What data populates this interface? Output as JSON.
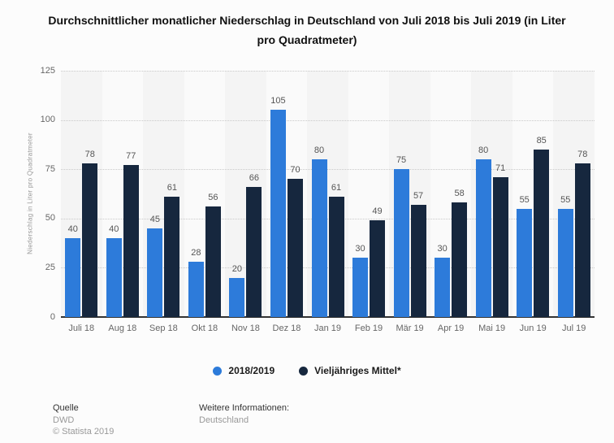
{
  "title": "Durchschnittlicher monatlicher Niederschlag in Deutschland von Juli 2018 bis Juli 2019 (in Liter pro Quadratmeter)",
  "chart_data": {
    "type": "bar",
    "categories": [
      "Juli 18",
      "Aug 18",
      "Sep 18",
      "Okt 18",
      "Nov 18",
      "Dez 18",
      "Jan 19",
      "Feb 19",
      "Mär 19",
      "Apr 19",
      "Mai 19",
      "Jun 19",
      "Jul 19"
    ],
    "series": [
      {
        "name": "2018/2019",
        "color": "#2d7bda",
        "values": [
          40,
          40,
          45,
          28,
          20,
          105,
          80,
          30,
          75,
          30,
          80,
          55,
          55
        ]
      },
      {
        "name": "Vieljähriges Mittel*",
        "color": "#16273e",
        "values": [
          78,
          77,
          61,
          56,
          66,
          70,
          61,
          49,
          57,
          58,
          71,
          85,
          78
        ]
      }
    ],
    "xlabel": "",
    "ylabel": "Niederschlag in Liter pro Quadratmeter",
    "ylim": [
      0,
      125
    ],
    "yticks": [
      0,
      25,
      50,
      75,
      100,
      125
    ],
    "grid": "horizontal dotted",
    "legend_position": "bottom",
    "plot_background": "alternating column bands"
  },
  "legend": [
    {
      "label": "2018/2019",
      "color": "#2d7bda"
    },
    {
      "label": "Vieljähriges Mittel*",
      "color": "#16273e"
    }
  ],
  "footer": {
    "source_label": "Quelle",
    "source": "DWD",
    "copyright": "© Statista 2019",
    "info_label": "Weitere Informationen:",
    "info": "Deutschland"
  }
}
